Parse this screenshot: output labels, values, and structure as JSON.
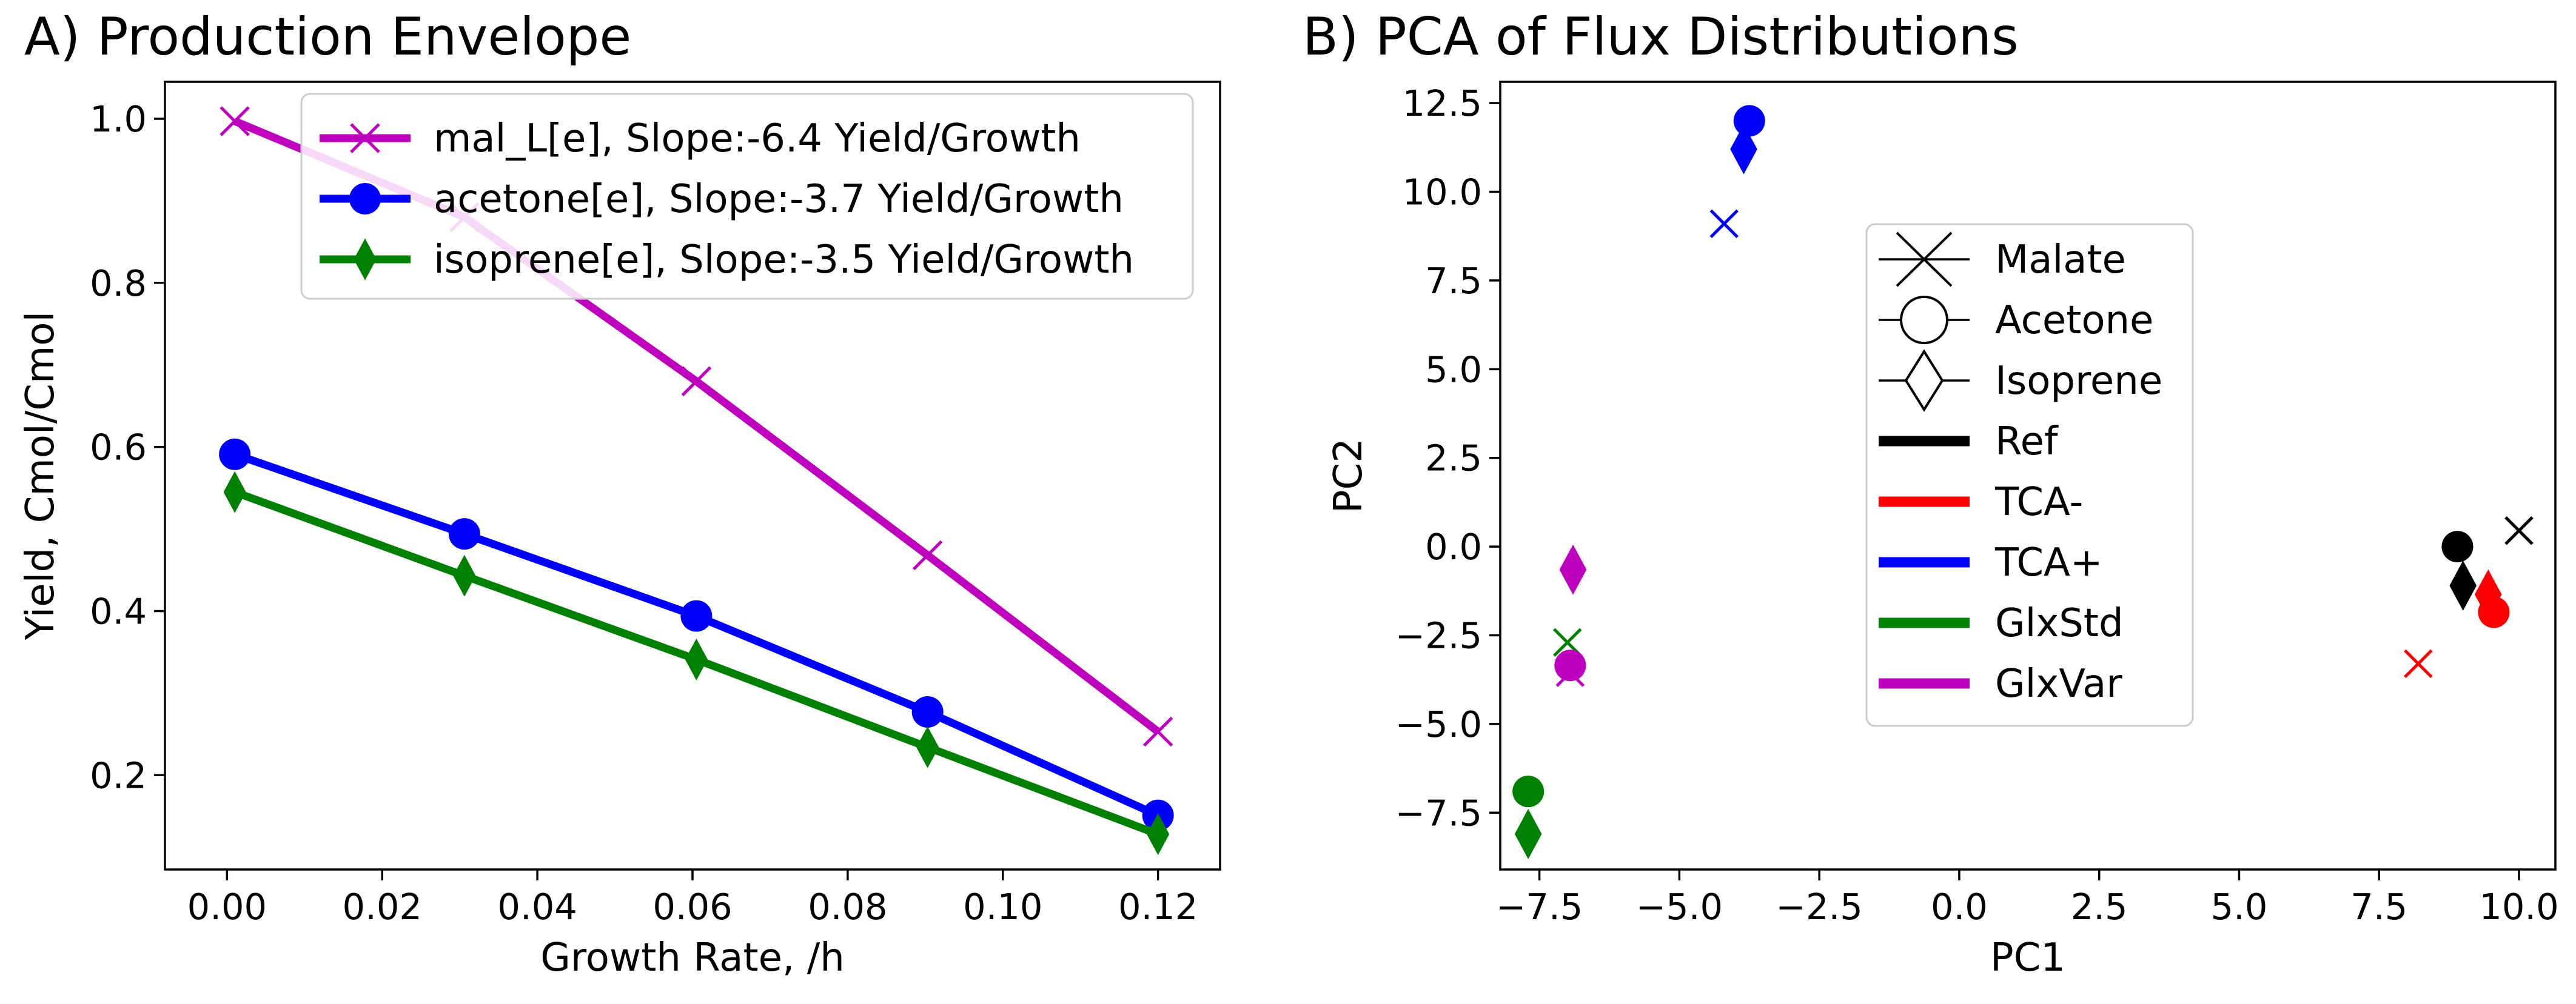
{
  "chart_data": [
    {
      "type": "line",
      "title": "A) Production Envelope",
      "xlabel": "Growth Rate, /h",
      "ylabel": "Yield, Cmol/Cmol",
      "xlim": [
        -0.008,
        0.128
      ],
      "ylim": [
        0.085,
        1.045
      ],
      "xticks": [
        0.0,
        0.02,
        0.04,
        0.06,
        0.08,
        0.1,
        0.12
      ],
      "xtick_labels": [
        "0.00",
        "0.02",
        "0.04",
        "0.06",
        "0.08",
        "0.10",
        "0.12"
      ],
      "yticks": [
        0.2,
        0.4,
        0.6,
        0.8,
        1.0
      ],
      "ytick_labels": [
        "0.2",
        "0.4",
        "0.6",
        "0.8",
        "1.0"
      ],
      "grid": false,
      "legend_position": "top-right",
      "x": [
        0.001,
        0.0306,
        0.0605,
        0.0903,
        0.12
      ],
      "series": [
        {
          "name": "mal_L[e], Slope:-6.4 Yield/Growth",
          "color": "#bf00bf",
          "marker": "x",
          "values": [
            0.997,
            0.88,
            0.68,
            0.468,
            0.253
          ]
        },
        {
          "name": "acetone[e], Slope:-3.7 Yield/Growth",
          "color": "#0000ff",
          "marker": "o",
          "values": [
            0.591,
            0.494,
            0.394,
            0.277,
            0.151
          ]
        },
        {
          "name": "isoprene[e], Slope:-3.5 Yield/Growth",
          "color": "#008000",
          "marker": "d",
          "values": [
            0.545,
            0.443,
            0.341,
            0.234,
            0.128
          ]
        }
      ]
    },
    {
      "type": "scatter",
      "title": "B) PCA of Flux Distributions",
      "xlabel": "PC1",
      "ylabel": "PC2",
      "xlim": [
        -8.2,
        10.65
      ],
      "ylim": [
        -9.1,
        13.1
      ],
      "xticks": [
        -7.5,
        -5.0,
        -2.5,
        0.0,
        2.5,
        5.0,
        7.5,
        10.0
      ],
      "xtick_labels": [
        "−7.5",
        "−5.0",
        "−2.5",
        "0.0",
        "2.5",
        "5.0",
        "7.5",
        "10.0"
      ],
      "yticks": [
        -7.5,
        -5.0,
        -2.5,
        0.0,
        2.5,
        5.0,
        7.5,
        10.0,
        12.5
      ],
      "ytick_labels": [
        "−7.5",
        "−5.0",
        "−2.5",
        "0.0",
        "2.5",
        "5.0",
        "7.5",
        "10.0",
        "12.5"
      ],
      "grid": false,
      "legend_position": "center",
      "legend": [
        {
          "label": "Malate",
          "kind": "marker",
          "marker": "x"
        },
        {
          "label": "Acetone",
          "kind": "marker",
          "marker": "o"
        },
        {
          "label": "Isoprene",
          "kind": "marker",
          "marker": "d"
        },
        {
          "label": "Ref",
          "kind": "line",
          "color": "#000000"
        },
        {
          "label": "TCA-",
          "kind": "line",
          "color": "#ff0000"
        },
        {
          "label": "TCA+",
          "kind": "line",
          "color": "#0000ff"
        },
        {
          "label": "GlxStd",
          "kind": "line",
          "color": "#008000"
        },
        {
          "label": "GlxVar",
          "kind": "line",
          "color": "#bf00bf"
        }
      ],
      "points": [
        {
          "group": "Ref",
          "marker": "x",
          "color": "#000000",
          "x": 10.0,
          "y": 0.45
        },
        {
          "group": "Ref",
          "marker": "o",
          "color": "#000000",
          "x": 8.9,
          "y": 0.0
        },
        {
          "group": "Ref",
          "marker": "d",
          "color": "#000000",
          "x": 9.0,
          "y": -1.1
        },
        {
          "group": "TCA-",
          "marker": "x",
          "color": "#ff0000",
          "x": 8.2,
          "y": -3.3
        },
        {
          "group": "TCA-",
          "marker": "o",
          "color": "#ff0000",
          "x": 9.55,
          "y": -1.85
        },
        {
          "group": "TCA-",
          "marker": "d",
          "color": "#ff0000",
          "x": 9.45,
          "y": -1.35
        },
        {
          "group": "TCA+",
          "marker": "x",
          "color": "#0000ff",
          "x": -4.2,
          "y": 9.1
        },
        {
          "group": "TCA+",
          "marker": "o",
          "color": "#0000ff",
          "x": -3.75,
          "y": 12.0
        },
        {
          "group": "TCA+",
          "marker": "d",
          "color": "#0000ff",
          "x": -3.85,
          "y": 11.2
        },
        {
          "group": "GlxStd",
          "marker": "x",
          "color": "#008000",
          "x": -7.0,
          "y": -2.7
        },
        {
          "group": "GlxStd",
          "marker": "o",
          "color": "#008000",
          "x": -7.7,
          "y": -6.9
        },
        {
          "group": "GlxStd",
          "marker": "d",
          "color": "#008000",
          "x": -7.7,
          "y": -8.1
        },
        {
          "group": "GlxVar",
          "marker": "x",
          "color": "#bf00bf",
          "x": -6.95,
          "y": -3.55
        },
        {
          "group": "GlxVar",
          "marker": "o",
          "color": "#bf00bf",
          "x": -6.95,
          "y": -3.35
        },
        {
          "group": "GlxVar",
          "marker": "d",
          "color": "#bf00bf",
          "x": -6.9,
          "y": -0.65
        }
      ]
    }
  ]
}
